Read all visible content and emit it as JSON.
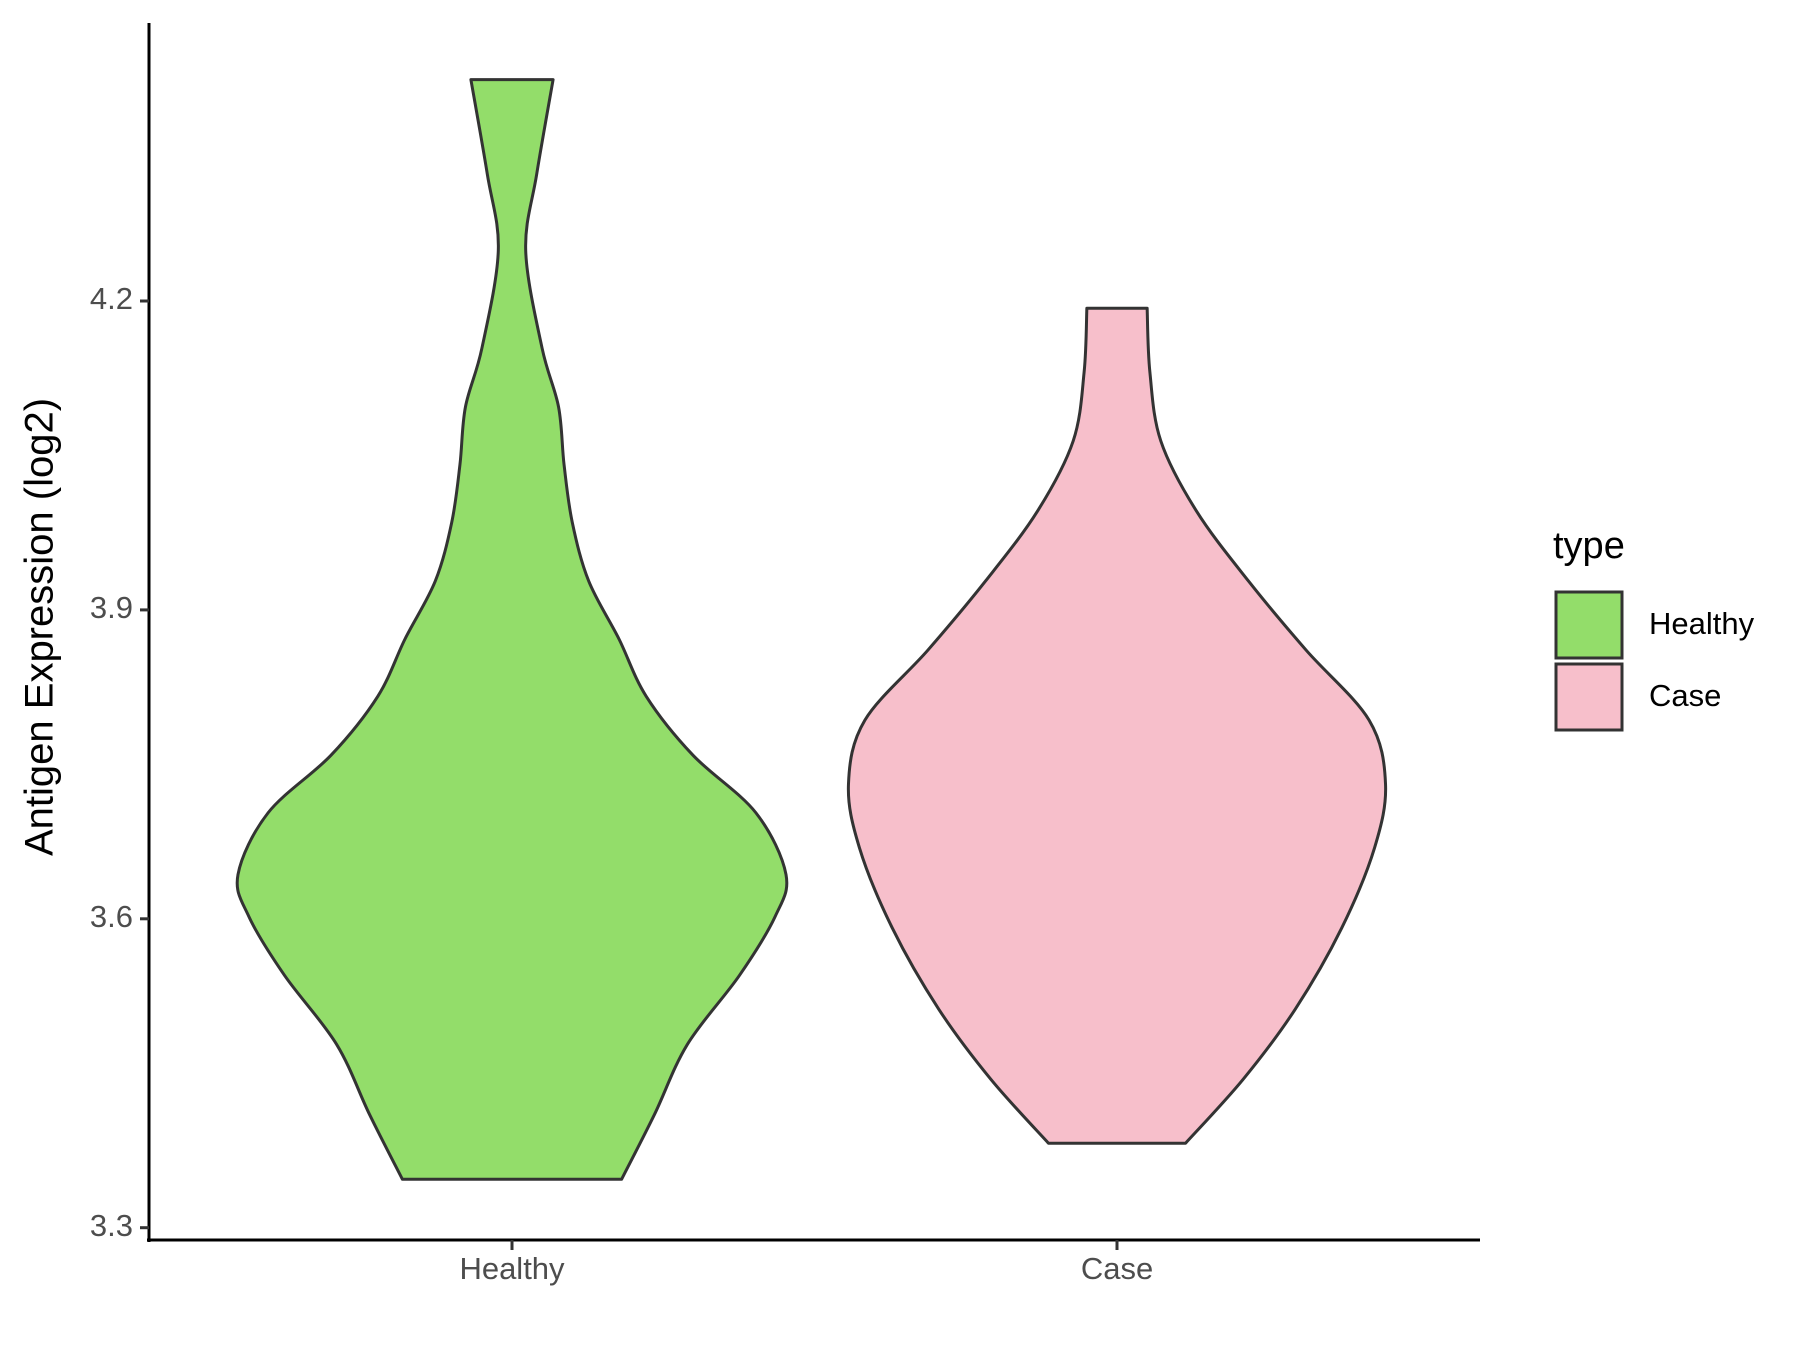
{
  "chart_data": {
    "type": "violin",
    "y_label": "Antigen Expression (log2)",
    "categories": [
      "Healthy",
      "Case"
    ],
    "ylim": [
      3.29,
      4.47
    ],
    "yticks": [
      3.3,
      3.6,
      3.9,
      4.2
    ],
    "legend_title": "type",
    "legend_position": "right",
    "series": [
      {
        "name": "Healthy",
        "color": "#93dd6a",
        "y": [
          3.347,
          3.41,
          3.478,
          3.545,
          3.602,
          3.643,
          3.703,
          3.759,
          3.816,
          3.872,
          3.928,
          3.985,
          4.041,
          4.097,
          4.154,
          4.249,
          4.323,
          4.415
        ],
        "density": [
          0.4,
          0.52,
          0.64,
          0.83,
          0.96,
          1.0,
          0.89,
          0.66,
          0.49,
          0.39,
          0.28,
          0.22,
          0.19,
          0.17,
          0.11,
          0.05,
          0.09,
          0.15
        ]
      },
      {
        "name": "Case",
        "color": "#f7bfcb",
        "y": [
          3.382,
          3.444,
          3.512,
          3.591,
          3.669,
          3.731,
          3.793,
          3.861,
          3.928,
          3.996,
          4.064,
          4.131,
          4.193
        ],
        "density": [
          0.25,
          0.46,
          0.65,
          0.82,
          0.94,
          0.98,
          0.92,
          0.69,
          0.48,
          0.29,
          0.16,
          0.12,
          0.11
        ]
      }
    ]
  }
}
